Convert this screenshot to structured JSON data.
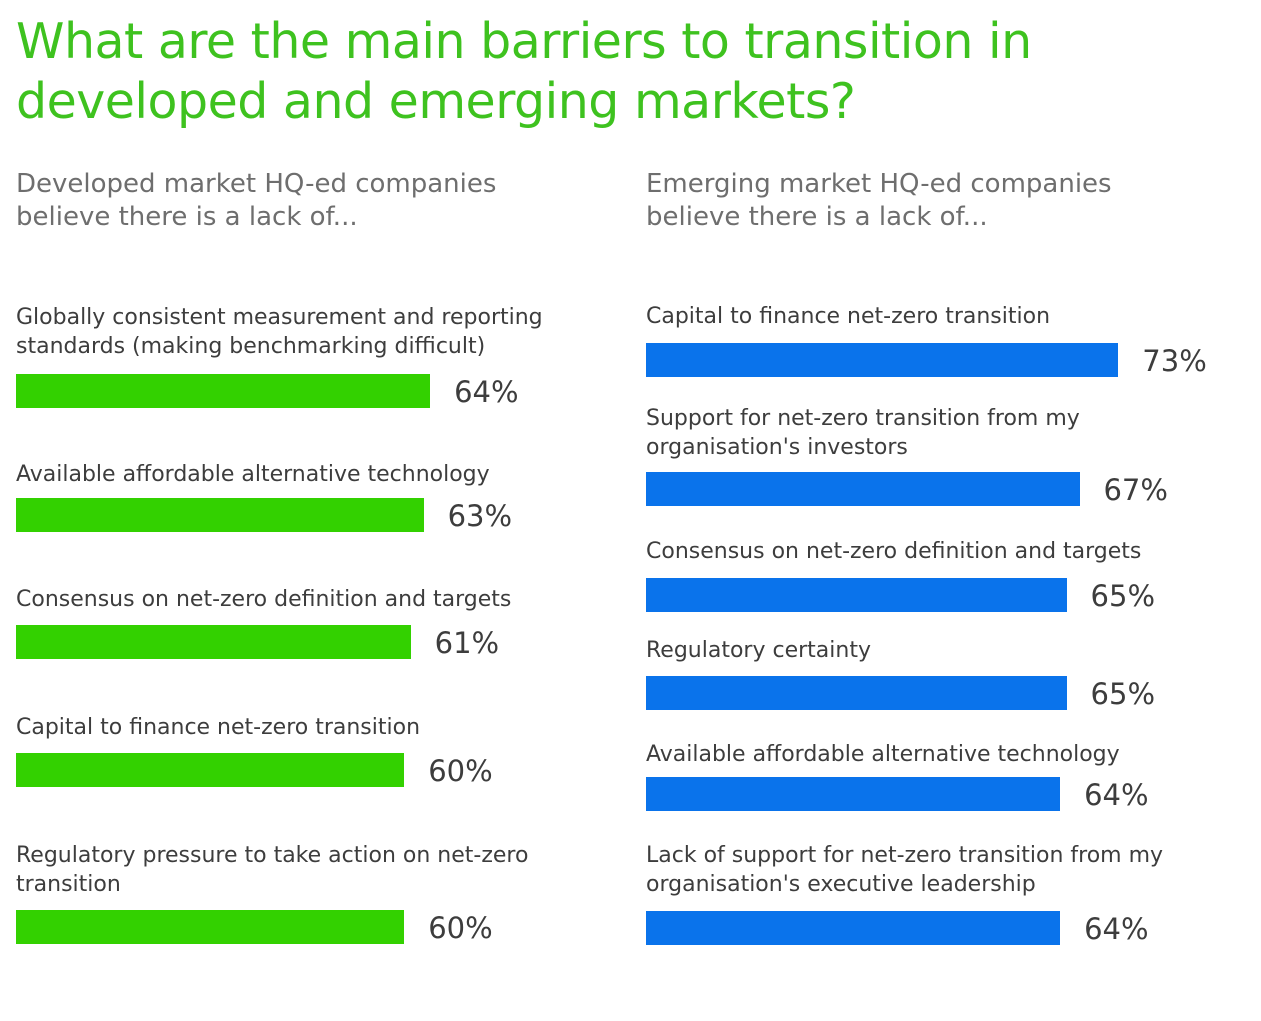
{
  "title": "What are the main barriers to transition in developed and emerging markets?",
  "colors": {
    "title": "#3ec21f",
    "developed": "#33d100",
    "emerging": "#0a73eb"
  },
  "chart_data": [
    {
      "type": "bar",
      "orientation": "horizontal",
      "title": "Developed market HQ-ed companies believe there is a lack of...",
      "categories": [
        "Globally consistent measurement and reporting standards (making benchmarking difficult)",
        "Available affordable alternative technology",
        "Consensus on net-zero definition and targets",
        "Capital to finance net-zero transition",
        "Regulatory pressure to take action on net-zero transition"
      ],
      "values": [
        64,
        63,
        61,
        60,
        60
      ],
      "value_labels": [
        "64%",
        "63%",
        "61%",
        "60%",
        "60%"
      ],
      "unit": "%",
      "color": "#33d100"
    },
    {
      "type": "bar",
      "orientation": "horizontal",
      "title": "Emerging market HQ-ed companies believe there is a lack of...",
      "categories": [
        "Capital to finance net-zero transition",
        "Support for net-zero transition from my organisation's investors",
        "Consensus on net-zero definition and targets",
        "Regulatory certainty",
        "Available affordable alternative technology",
        "Lack of support for net-zero transition from my organisation's executive leadership"
      ],
      "values": [
        73,
        67,
        65,
        65,
        64,
        64
      ],
      "value_labels": [
        "73%",
        "67%",
        "65%",
        "65%",
        "64%",
        "64%"
      ],
      "unit": "%",
      "color": "#0a73eb"
    }
  ]
}
